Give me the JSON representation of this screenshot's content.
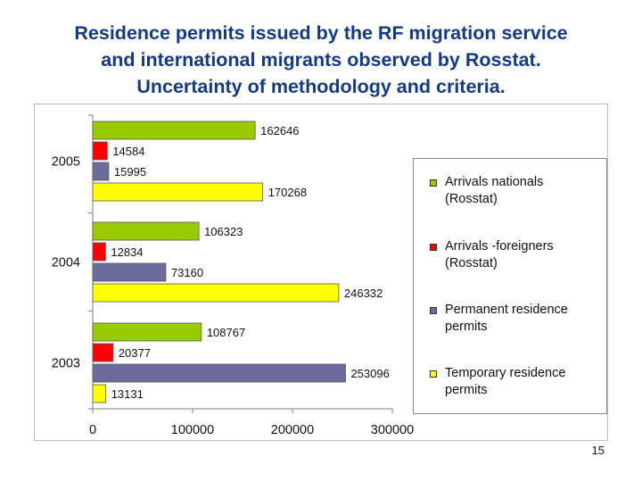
{
  "title_lines": [
    "Residence permits issued by  the RF migration service",
    "and  international migrants observed by Rosstat.",
    "Uncertainty of methodology and criteria."
  ],
  "page_number": "15",
  "chart_data": {
    "type": "bar",
    "orientation": "horizontal",
    "title": "",
    "xlabel": "",
    "ylabel": "",
    "categories": [
      "2005",
      "2004",
      "2003"
    ],
    "series": [
      {
        "name": "Arrivals nationals (Rosstat)",
        "color": "#99cc00",
        "values": [
          162646,
          106323,
          108767
        ]
      },
      {
        "name": "Arrivals -foreigners (Rosstat)",
        "color": "#ff0000",
        "values": [
          14584,
          12834,
          20377
        ]
      },
      {
        "name": "Permanent residence permits",
        "color": "#6b6b9e",
        "values": [
          15995,
          73160,
          253096
        ]
      },
      {
        "name": "Temporary residence permits",
        "color": "#ffff00",
        "values": [
          170268,
          246332,
          13131
        ]
      }
    ],
    "xlim": [
      0,
      300000
    ],
    "xticks": [
      "0",
      "100000",
      "200000",
      "300000"
    ],
    "data_labels": true,
    "grid": false,
    "legend_position": "right"
  },
  "legend": {
    "items": [
      {
        "label_lines": [
          "Arrivals nationals",
          "(Rosstat)"
        ],
        "color": "#99cc00"
      },
      {
        "label_lines": [
          "Arrivals -foreigners",
          "(Rosstat)"
        ],
        "color": "#ff0000"
      },
      {
        "label_lines": [
          "Permanent residence",
          "permits"
        ],
        "color": "#6b6b9e"
      },
      {
        "label_lines": [
          "Temporary residence",
          "permits"
        ],
        "color": "#ffff00"
      }
    ]
  }
}
